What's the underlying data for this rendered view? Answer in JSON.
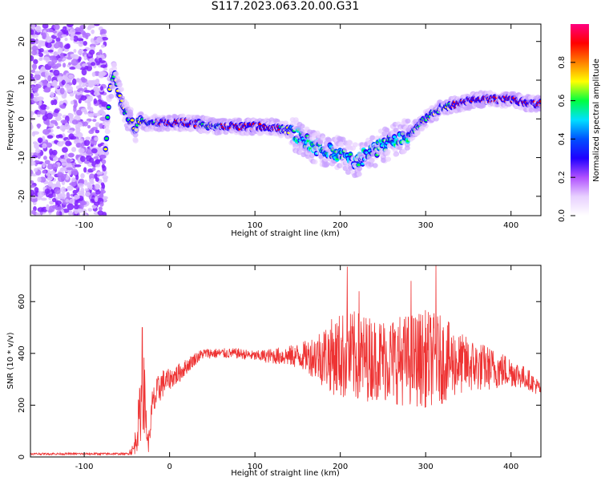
{
  "title": "S117.2023.063.20.00.G31",
  "chart_data": [
    {
      "type": "heatmap",
      "name": "spectrogram",
      "xlabel": "Height of straight line (km)",
      "ylabel": "Frequency (Hz)",
      "xlim": [
        -163,
        435
      ],
      "ylim": [
        -25,
        24.5
      ],
      "xticks": [
        -100,
        0,
        100,
        200,
        300,
        400
      ],
      "yticks": [
        -20,
        -10,
        0,
        10,
        20
      ],
      "colorbar": {
        "label": "Normalized spectral amplitude",
        "range": [
          0,
          1
        ],
        "ticks": [
          "0.0",
          "0.2",
          "0.4",
          "0.6",
          "0.8"
        ],
        "colors": [
          "#ffffff",
          "#e8d0ff",
          "#b050ff",
          "#2000ff",
          "#0050ff",
          "#00e0ff",
          "#00ff40",
          "#ffff00",
          "#ff8000",
          "#ff0000",
          "#ff0080"
        ]
      },
      "ridge_frequency": {
        "x": [
          -75,
          -70,
          -65,
          -60,
          -55,
          -50,
          -45,
          -40,
          -35,
          -30,
          -20,
          0,
          20,
          40,
          60,
          80,
          100,
          120,
          140,
          160,
          180,
          200,
          220,
          240,
          260,
          280,
          300,
          320,
          340,
          360,
          380,
          400,
          420,
          435
        ],
        "freq": [
          -8,
          8,
          12,
          8,
          3,
          1,
          -1,
          -3,
          0,
          -1,
          -1,
          -1,
          -1,
          -1.5,
          -2,
          -2,
          -2,
          -2,
          -3,
          -6,
          -8,
          -9,
          -11,
          -8,
          -6,
          -4,
          0,
          3,
          4,
          5,
          5,
          5,
          4,
          4
        ]
      },
      "noise_region_x": [
        -163,
        -75
      ]
    },
    {
      "type": "line",
      "name": "snr",
      "xlabel": "Height of straight line (km)",
      "ylabel": "SNR (10 * v/v)",
      "xlim": [
        -163,
        435
      ],
      "ylim": [
        0,
        740
      ],
      "xticks": [
        -100,
        0,
        100,
        200,
        300,
        400
      ],
      "yticks": [
        0,
        200,
        400,
        600
      ],
      "color": "#ee3333",
      "envelope": {
        "x": [
          -163,
          -120,
          -80,
          -50,
          -42,
          -38,
          -35,
          -33,
          -30,
          -27,
          -25,
          -20,
          -10,
          0,
          10,
          20,
          30,
          40,
          60,
          80,
          100,
          120,
          140,
          160,
          180,
          200,
          220,
          240,
          260,
          280,
          300,
          320,
          340,
          360,
          380,
          400,
          420,
          435
        ],
        "mean": [
          12,
          12,
          12,
          12,
          30,
          100,
          160,
          220,
          250,
          120,
          40,
          200,
          280,
          300,
          320,
          350,
          380,
          400,
          400,
          400,
          390,
          390,
          390,
          390,
          390,
          390,
          385,
          380,
          375,
          375,
          380,
          375,
          360,
          350,
          340,
          330,
          300,
          260
        ],
        "amp": [
          4,
          4,
          4,
          4,
          25,
          80,
          120,
          140,
          150,
          80,
          30,
          70,
          60,
          40,
          40,
          30,
          25,
          20,
          20,
          20,
          20,
          30,
          40,
          60,
          120,
          170,
          180,
          160,
          170,
          180,
          190,
          170,
          120,
          100,
          80,
          60,
          40,
          30
        ]
      },
      "peaks": [
        {
          "x": -32,
          "y": 500
        },
        {
          "x": 208,
          "y": 735
        },
        {
          "x": 222,
          "y": 640
        },
        {
          "x": 283,
          "y": 680
        },
        {
          "x": 312,
          "y": 740
        }
      ]
    }
  ]
}
